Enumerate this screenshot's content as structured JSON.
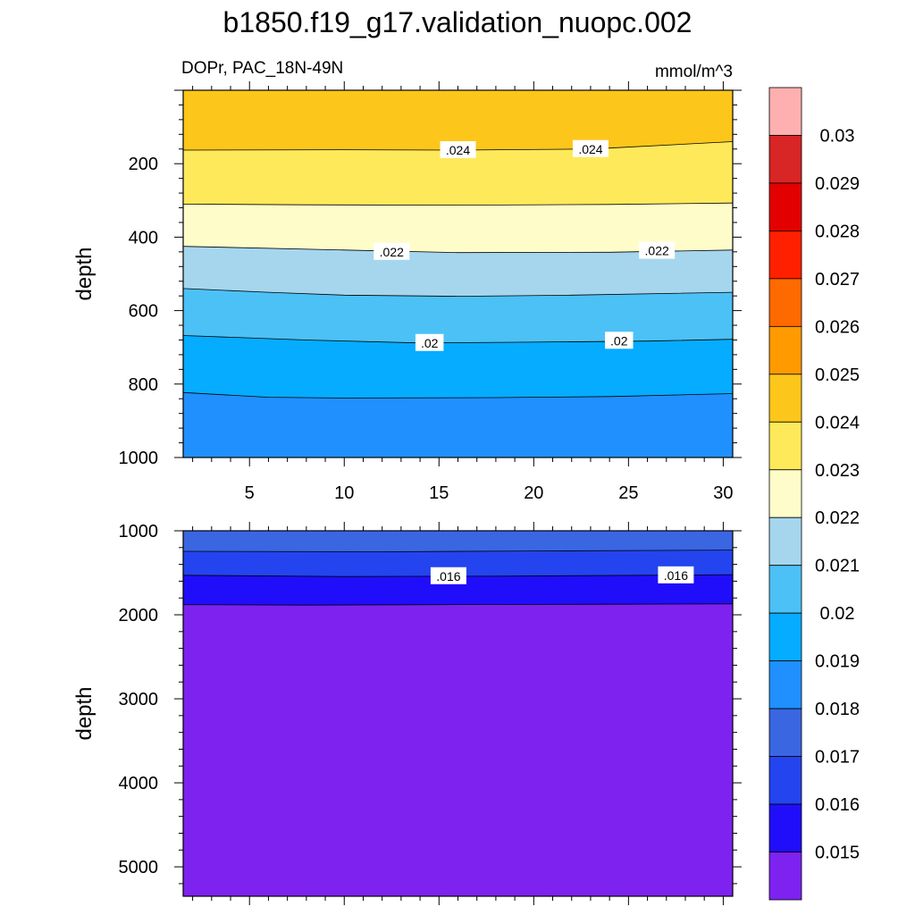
{
  "title": "b1850.f19_g17.validation_nuopc.002",
  "subtitle_left": "DOPr, PAC_18N-49N",
  "units": "mmol/m^3",
  "chart_data": [
    {
      "type": "contour",
      "panel": "upper",
      "ylabel": "depth",
      "xlim": [
        1.5,
        30.5
      ],
      "ylim": [
        1000,
        0
      ],
      "xticks": [
        5,
        10,
        15,
        20,
        25,
        30
      ],
      "yticks": [
        200,
        400,
        600,
        800,
        1000
      ],
      "filled_bands": [
        {
          "from_depth": 0,
          "to": [
            [
              1.5,
              163
            ],
            [
              10,
              162
            ],
            [
              16,
              163
            ],
            [
              23,
              160
            ],
            [
              30.5,
              140
            ]
          ],
          "color": "#FDC61A"
        },
        {
          "to": [
            [
              1.5,
              310
            ],
            [
              8,
              312
            ],
            [
              16,
              313
            ],
            [
              24,
              311
            ],
            [
              30.5,
              307
            ]
          ],
          "color": "#FEE95A"
        },
        {
          "to": [
            [
              1.5,
              425
            ],
            [
              10,
              435
            ],
            [
              16,
              442
            ],
            [
              24,
              441
            ],
            [
              30.5,
              435
            ]
          ],
          "color": "#FEFDCA"
        },
        {
          "to": [
            [
              1.5,
              540
            ],
            [
              6,
              550
            ],
            [
              10,
              558
            ],
            [
              16,
              561
            ],
            [
              22,
              558
            ],
            [
              30.5,
              550
            ]
          ],
          "color": "#A5D6EE"
        },
        {
          "to": [
            [
              1.5,
              668
            ],
            [
              8,
              680
            ],
            [
              14,
              688
            ],
            [
              20,
              686
            ],
            [
              26,
              683
            ],
            [
              30.5,
              678
            ]
          ],
          "color": "#4CC1F5"
        },
        {
          "to": [
            [
              1.5,
              823
            ],
            [
              6,
              836
            ],
            [
              10,
              838
            ],
            [
              18,
              837
            ],
            [
              24,
              834
            ],
            [
              30.5,
              826
            ]
          ],
          "color": "#06ACFF"
        },
        {
          "to_depth": 1000,
          "color": "#2090FF"
        }
      ],
      "line_labels": [
        {
          "text": ".024",
          "x": 16,
          "depth": 163
        },
        {
          "text": ".024",
          "x": 23,
          "depth": 160
        },
        {
          "text": ".022",
          "x": 12.5,
          "depth": 440
        },
        {
          "text": ".022",
          "x": 26.5,
          "depth": 437
        },
        {
          "text": ".02",
          "x": 14.5,
          "depth": 688
        },
        {
          "text": ".02",
          "x": 24.5,
          "depth": 682
        }
      ]
    },
    {
      "type": "contour",
      "panel": "lower",
      "ylabel": "depth",
      "xlim": [
        1.5,
        30.5
      ],
      "ylim": [
        5350,
        1000
      ],
      "yticks": [
        1000,
        2000,
        3000,
        4000,
        5000
      ],
      "filled_bands": [
        {
          "from_depth": 1000,
          "to": [
            [
              1.5,
              1245
            ],
            [
              12,
              1250
            ],
            [
              20,
              1240
            ],
            [
              30.5,
              1230
            ]
          ],
          "color": "#3A66E2"
        },
        {
          "to": [
            [
              1.5,
              1530
            ],
            [
              10,
              1545
            ],
            [
              18,
              1540
            ],
            [
              26,
              1530
            ],
            [
              30.5,
              1522
            ]
          ],
          "color": "#2444F0"
        },
        {
          "to": [
            [
              1.5,
              1880
            ],
            [
              8,
              1885
            ],
            [
              15,
              1880
            ],
            [
              24,
              1874
            ],
            [
              30.5,
              1870
            ]
          ],
          "color": "#200EFA"
        },
        {
          "to_depth": 5350,
          "color": "#7E22F0"
        }
      ],
      "line_labels": [
        {
          "text": ".016",
          "x": 15.5,
          "depth": 1540
        },
        {
          "text": ".016",
          "x": 27.5,
          "depth": 1530
        }
      ]
    }
  ],
  "colorbar": {
    "levels": [
      "0.03",
      "0.029",
      "0.028",
      "0.027",
      "0.026",
      "0.025",
      "0.024",
      "0.023",
      "0.022",
      "0.021",
      "0.02",
      "0.019",
      "0.018",
      "0.017",
      "0.016",
      "0.015"
    ],
    "colors": [
      "#FEB0B0",
      "#D82525",
      "#E30000",
      "#FF2000",
      "#FF6A00",
      "#FF9A00",
      "#FDC61A",
      "#FEE95A",
      "#FEFDCA",
      "#A5D6EE",
      "#4CC1F5",
      "#06ACFF",
      "#2090FF",
      "#3A66E2",
      "#2444F0",
      "#200EFA",
      "#7E22F0"
    ]
  }
}
